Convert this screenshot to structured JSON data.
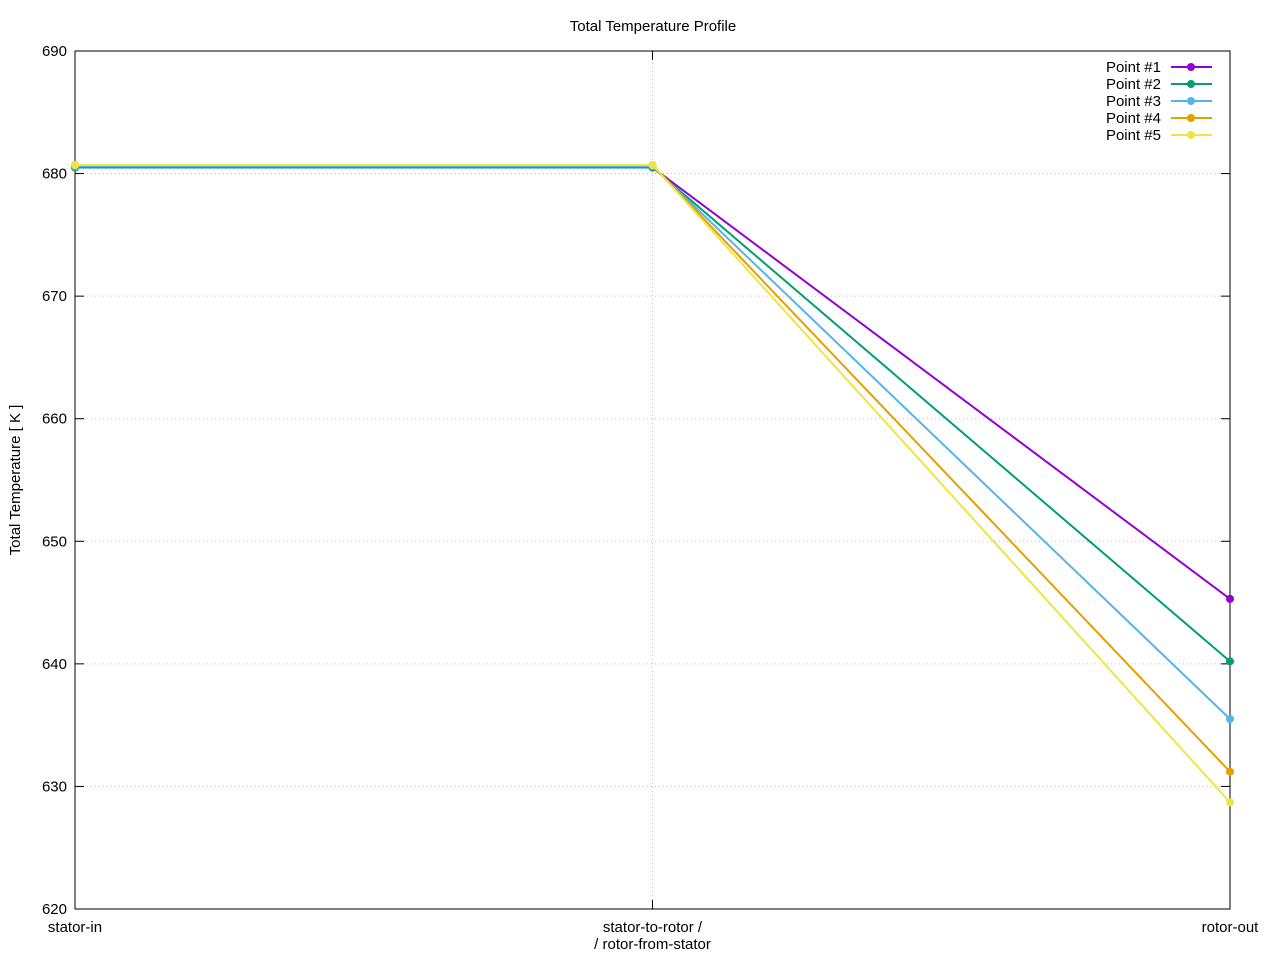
{
  "chart_data": {
    "type": "line",
    "title": "Total Temperature Profile",
    "xlabel": "",
    "ylabel": "Total Temperature [ K ]",
    "categories": [
      "stator-in",
      "stator-to-rotor /\n/ rotor-from-stator",
      "rotor-out"
    ],
    "ylim": [
      620,
      690
    ],
    "yticks": [
      620,
      630,
      640,
      650,
      660,
      670,
      680,
      690
    ],
    "grid": true,
    "legend_position": "top-right",
    "series": [
      {
        "name": "Point #1",
        "color": "#9400d3",
        "values": [
          680.5,
          680.5,
          645.3
        ]
      },
      {
        "name": "Point #2",
        "color": "#009e73",
        "values": [
          680.5,
          680.5,
          640.2
        ]
      },
      {
        "name": "Point #3",
        "color": "#56b4e9",
        "values": [
          680.6,
          680.6,
          635.5
        ]
      },
      {
        "name": "Point #4",
        "color": "#e69f00",
        "values": [
          680.7,
          680.7,
          631.2
        ]
      },
      {
        "name": "Point #5",
        "color": "#f0e442",
        "values": [
          680.7,
          680.7,
          628.7
        ]
      }
    ]
  }
}
